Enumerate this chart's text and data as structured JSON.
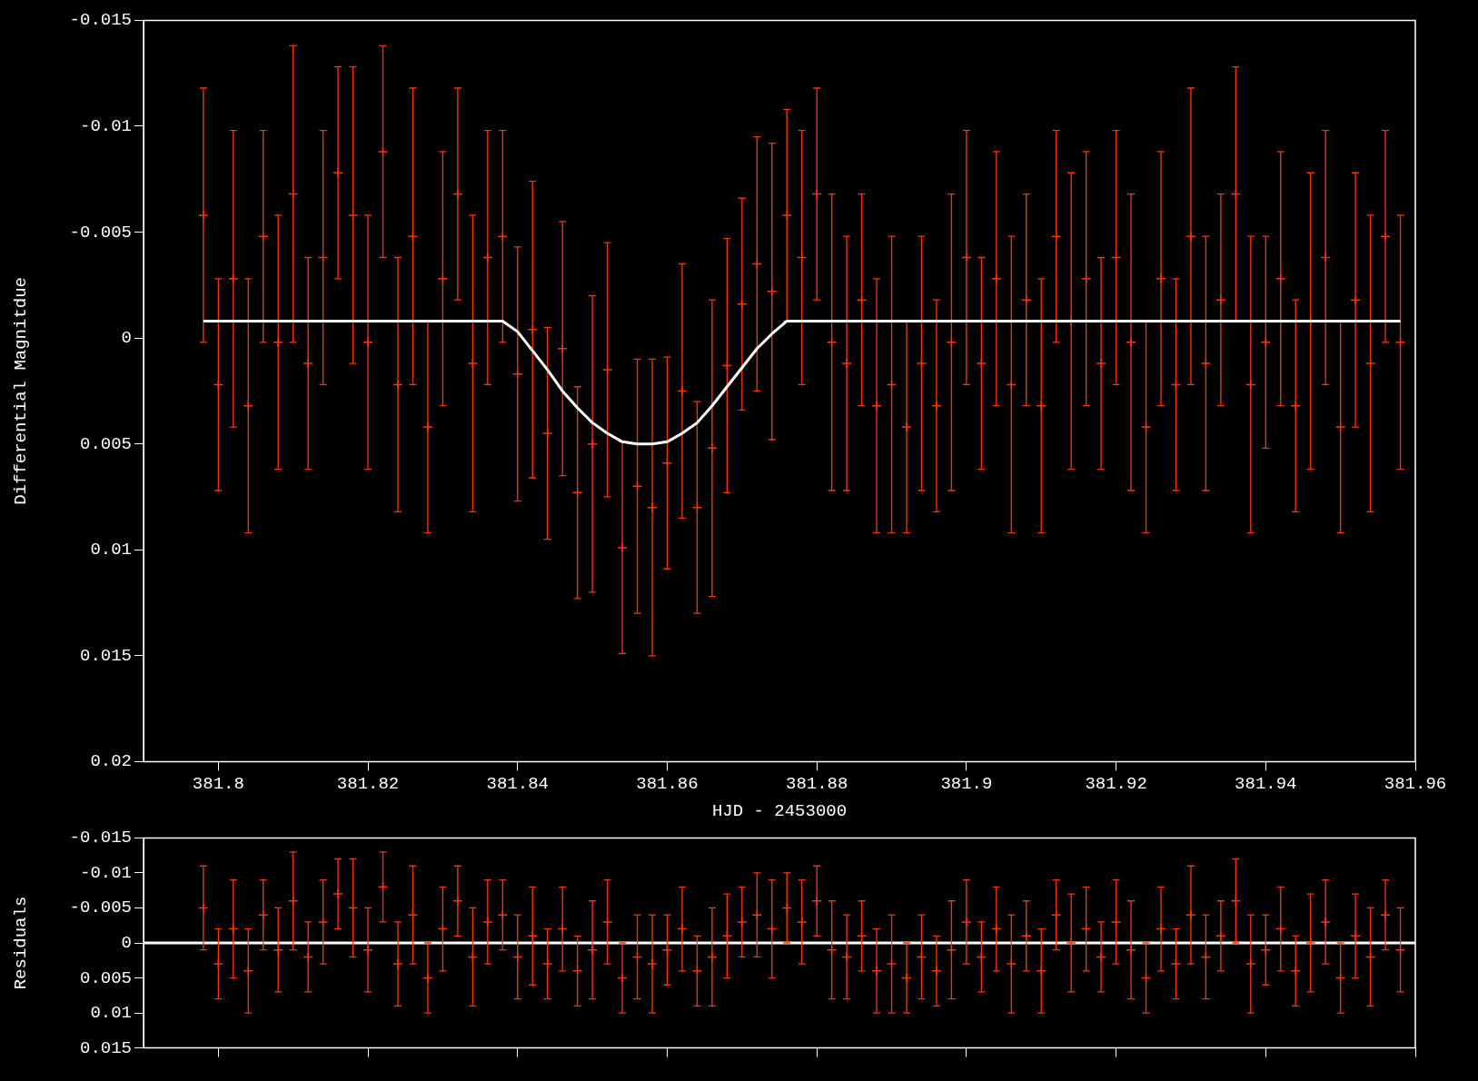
{
  "chart_data": [
    {
      "type": "scatter",
      "xlabel": "HJD - 2453000",
      "ylabel": "Differential Magnitdue",
      "xlim": [
        381.79,
        381.96
      ],
      "xticks": [
        381.8,
        381.82,
        381.84,
        381.86,
        381.88,
        381.9,
        381.92,
        381.94,
        381.96
      ],
      "ylim": [
        0.02,
        -0.015
      ],
      "yticks": [
        -0.015,
        -0.01,
        -0.005,
        0,
        0.005,
        0.01,
        0.015,
        0.02
      ],
      "grid": false,
      "legend": false,
      "marker": "cross",
      "x": [
        381.798,
        381.8,
        381.802,
        381.804,
        381.806,
        381.808,
        381.81,
        381.812,
        381.814,
        381.816,
        381.818,
        381.82,
        381.822,
        381.824,
        381.826,
        381.828,
        381.83,
        381.832,
        381.834,
        381.836,
        381.838,
        381.84,
        381.842,
        381.844,
        381.846,
        381.848,
        381.85,
        381.852,
        381.854,
        381.856,
        381.858,
        381.86,
        381.862,
        381.864,
        381.866,
        381.868,
        381.87,
        381.872,
        381.874,
        381.876,
        381.878,
        381.88,
        381.882,
        381.884,
        381.886,
        381.888,
        381.89,
        381.892,
        381.894,
        381.896,
        381.898,
        381.9,
        381.902,
        381.904,
        381.906,
        381.908,
        381.91,
        381.912,
        381.914,
        381.916,
        381.918,
        381.92,
        381.922,
        381.924,
        381.926,
        381.928,
        381.93,
        381.932,
        381.934,
        381.936,
        381.938,
        381.94,
        381.942,
        381.944,
        381.946,
        381.948,
        381.95,
        381.952,
        381.954,
        381.956,
        381.958
      ],
      "series": [
        {
          "color": "#ff3300",
          "values": [
            -0.0058,
            0.0022,
            -0.0028,
            0.0032,
            -0.0048,
            0.0002,
            -0.0068,
            0.0012,
            -0.0038,
            -0.0078,
            -0.0058,
            0.0002,
            -0.0088,
            0.0022,
            -0.0048,
            0.0042,
            -0.0028,
            -0.0068,
            0.0012,
            -0.0038,
            -0.0048,
            0.0017,
            -0.0004,
            0.0045,
            0.0005,
            0.0073,
            0.005,
            0.0015,
            0.0099,
            0.007,
            0.008,
            0.0059,
            0.0025,
            0.008,
            0.0052,
            0.0013,
            -0.0016,
            -0.0035,
            -0.0022,
            -0.0058,
            -0.0038,
            -0.0068,
            0.0002,
            0.0012,
            -0.0018,
            0.0032,
            0.0022,
            0.0042,
            0.0012,
            0.0032,
            0.0002,
            -0.0038,
            0.0012,
            -0.0028,
            0.0022,
            -0.0018,
            0.0032,
            -0.0048,
            -0.0008,
            -0.0028,
            0.0012,
            -0.0038,
            0.0002,
            0.0042,
            -0.0028,
            0.0022,
            -0.0048,
            0.0012,
            -0.0018,
            -0.0068,
            0.0022,
            0.0002,
            -0.0028,
            0.0032,
            -0.0008,
            -0.0038,
            0.0042,
            -0.0018,
            0.0012,
            -0.0048,
            0.0002
          ],
          "errors": [
            0.006,
            0.005,
            0.007,
            0.006,
            0.005,
            0.006,
            0.007,
            0.005,
            0.006,
            0.005,
            0.007,
            0.006,
            0.005,
            0.006,
            0.007,
            0.005,
            0.006,
            0.005,
            0.007,
            0.006,
            0.005,
            0.006,
            0.007,
            0.005,
            0.006,
            0.005,
            0.007,
            0.006,
            0.005,
            0.006,
            0.007,
            0.005,
            0.006,
            0.005,
            0.007,
            0.006,
            0.005,
            0.006,
            0.007,
            0.005,
            0.006,
            0.005,
            0.007,
            0.006,
            0.005,
            0.006,
            0.007,
            0.005,
            0.006,
            0.005,
            0.007,
            0.006,
            0.005,
            0.006,
            0.007,
            0.005,
            0.006,
            0.005,
            0.007,
            0.006,
            0.005,
            0.006,
            0.007,
            0.005,
            0.006,
            0.005,
            0.007,
            0.006,
            0.005,
            0.006,
            0.007,
            0.005,
            0.006,
            0.005,
            0.007,
            0.006,
            0.005,
            0.006,
            0.007,
            0.005,
            0.006
          ]
        },
        {
          "type": "line",
          "color": "#ffffff",
          "marker": "none",
          "line_style": "solid",
          "x": [
            381.798,
            381.838,
            381.84,
            381.842,
            381.844,
            381.846,
            381.848,
            381.85,
            381.852,
            381.854,
            381.856,
            381.858,
            381.86,
            381.862,
            381.864,
            381.866,
            381.868,
            381.87,
            381.872,
            381.874,
            381.876,
            381.958
          ],
          "values": [
            -0.0008,
            -0.0008,
            -0.0003,
            0.0006,
            0.0015,
            0.0025,
            0.0033,
            0.004,
            0.0045,
            0.0049,
            0.005,
            0.005,
            0.0049,
            0.0045,
            0.004,
            0.0032,
            0.0023,
            0.0014,
            0.0005,
            -0.0002,
            -0.0008,
            -0.0008
          ]
        }
      ]
    },
    {
      "type": "scatter",
      "ylabel": "Residuals",
      "xlim": [
        381.79,
        381.96
      ],
      "xticks": [
        381.8,
        381.82,
        381.84,
        381.86,
        381.88,
        381.9,
        381.92,
        381.94,
        381.96
      ],
      "ylim": [
        0.015,
        -0.015
      ],
      "yticks": [
        -0.015,
        -0.01,
        -0.005,
        0,
        0.005,
        0.01,
        0.015
      ],
      "tick_labels": "y",
      "grid": false,
      "legend": false,
      "marker": "cross",
      "ref_lines": [
        {
          "axis": "y",
          "value": 0,
          "color": "#ffffff"
        }
      ],
      "x": [
        381.798,
        381.8,
        381.802,
        381.804,
        381.806,
        381.808,
        381.81,
        381.812,
        381.814,
        381.816,
        381.818,
        381.82,
        381.822,
        381.824,
        381.826,
        381.828,
        381.83,
        381.832,
        381.834,
        381.836,
        381.838,
        381.84,
        381.842,
        381.844,
        381.846,
        381.848,
        381.85,
        381.852,
        381.854,
        381.856,
        381.858,
        381.86,
        381.862,
        381.864,
        381.866,
        381.868,
        381.87,
        381.872,
        381.874,
        381.876,
        381.878,
        381.88,
        381.882,
        381.884,
        381.886,
        381.888,
        381.89,
        381.892,
        381.894,
        381.896,
        381.898,
        381.9,
        381.902,
        381.904,
        381.906,
        381.908,
        381.91,
        381.912,
        381.914,
        381.916,
        381.918,
        381.92,
        381.922,
        381.924,
        381.926,
        381.928,
        381.93,
        381.932,
        381.934,
        381.936,
        381.938,
        381.94,
        381.942,
        381.944,
        381.946,
        381.948,
        381.95,
        381.952,
        381.954,
        381.956,
        381.958
      ],
      "series": [
        {
          "color": "#ff3300",
          "values": [
            -0.005,
            0.003,
            -0.002,
            0.004,
            -0.004,
            0.001,
            -0.006,
            0.002,
            -0.003,
            -0.007,
            -0.005,
            0.001,
            -0.008,
            0.003,
            -0.004,
            0.005,
            -0.002,
            -0.006,
            0.002,
            -0.003,
            -0.004,
            0.002,
            -0.001,
            0.003,
            -0.002,
            0.004,
            0.001,
            -0.003,
            0.005,
            0.002,
            0.003,
            0.001,
            -0.002,
            0.004,
            0.002,
            -0.001,
            -0.003,
            -0.004,
            -0.002,
            -0.005,
            -0.003,
            -0.006,
            0.001,
            0.002,
            -0.001,
            0.004,
            0.003,
            0.005,
            0.002,
            0.004,
            0.001,
            -0.003,
            0.002,
            -0.002,
            0.003,
            -0.001,
            0.004,
            -0.004,
            0,
            -0.002,
            0.002,
            -0.003,
            0.001,
            0.005,
            -0.002,
            0.003,
            -0.004,
            0.002,
            -0.001,
            -0.006,
            0.003,
            0.001,
            -0.002,
            0.004,
            0,
            -0.003,
            0.005,
            -0.001,
            0.002,
            -0.004,
            0.001
          ],
          "errors": [
            0.006,
            0.005,
            0.007,
            0.006,
            0.005,
            0.006,
            0.007,
            0.005,
            0.006,
            0.005,
            0.007,
            0.006,
            0.005,
            0.006,
            0.007,
            0.005,
            0.006,
            0.005,
            0.007,
            0.006,
            0.005,
            0.006,
            0.007,
            0.005,
            0.006,
            0.005,
            0.007,
            0.006,
            0.005,
            0.006,
            0.007,
            0.005,
            0.006,
            0.005,
            0.007,
            0.006,
            0.005,
            0.006,
            0.007,
            0.005,
            0.006,
            0.005,
            0.007,
            0.006,
            0.005,
            0.006,
            0.007,
            0.005,
            0.006,
            0.005,
            0.007,
            0.006,
            0.005,
            0.006,
            0.007,
            0.005,
            0.006,
            0.005,
            0.007,
            0.006,
            0.005,
            0.006,
            0.007,
            0.005,
            0.006,
            0.005,
            0.007,
            0.006,
            0.005,
            0.006,
            0.007,
            0.005,
            0.006,
            0.005,
            0.007,
            0.006,
            0.005,
            0.006,
            0.007,
            0.005,
            0.006
          ]
        }
      ]
    }
  ]
}
